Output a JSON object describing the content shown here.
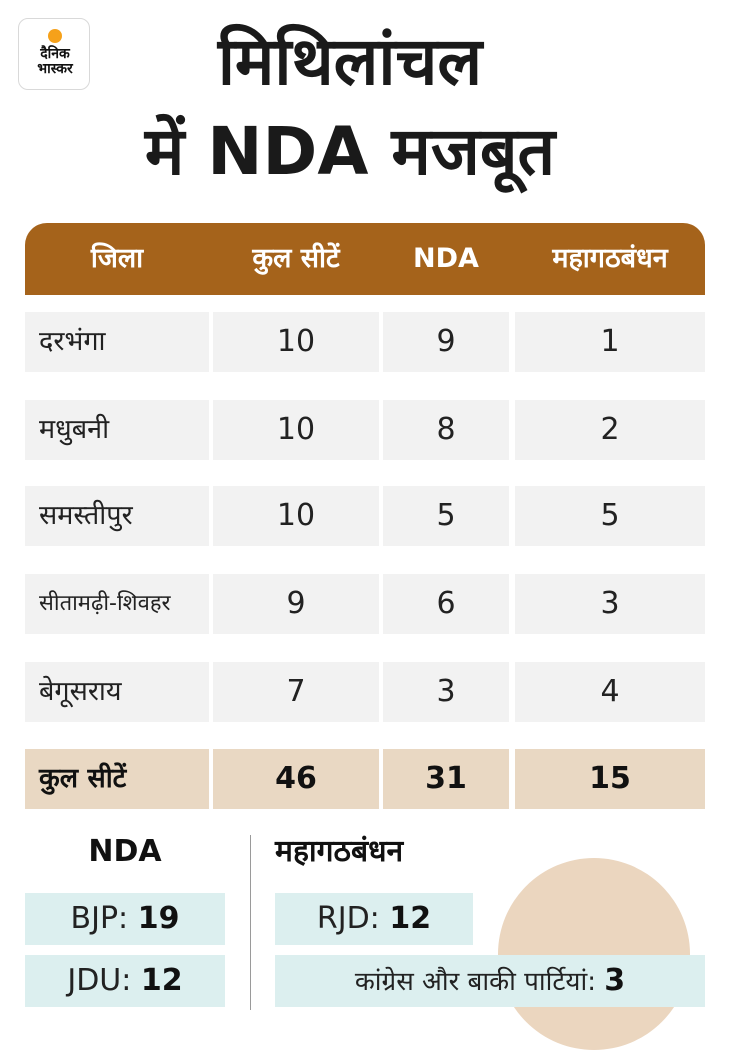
{
  "logo": {
    "line1": "दैनिक",
    "line2": "भास्कर"
  },
  "title": {
    "line1": "मिथिलांचल",
    "line2": "में NDA मजबूत"
  },
  "table": {
    "headers": [
      "जिला",
      "कुल सीटें",
      "NDA",
      "महागठबंधन"
    ],
    "rows": [
      {
        "district": "दरभंगा",
        "total": "10",
        "nda": "9",
        "mgb": "1"
      },
      {
        "district": "मधुबनी",
        "total": "10",
        "nda": "8",
        "mgb": "2"
      },
      {
        "district": "समस्तीपुर",
        "total": "10",
        "nda": "5",
        "mgb": "5"
      },
      {
        "district": "सीतामढ़ी-शिवहर",
        "total": "9",
        "nda": "6",
        "mgb": "3"
      },
      {
        "district": "बेगूसराय",
        "total": "7",
        "nda": "3",
        "mgb": "4"
      }
    ],
    "total_row": {
      "label": "कुल सीटें",
      "total": "46",
      "nda": "31",
      "mgb": "15"
    }
  },
  "summary": {
    "nda": {
      "heading": "NDA",
      "parties": [
        {
          "name": "BJP:",
          "seats": "19"
        },
        {
          "name": "JDU:",
          "seats": "12"
        }
      ]
    },
    "mgb": {
      "heading": "महागठबंधन",
      "parties": [
        {
          "name": "RJD:",
          "seats": "12"
        },
        {
          "name": "कांग्रेस और बाकी पार्टियां:",
          "seats": "3"
        }
      ]
    }
  },
  "colors": {
    "header": "#a5631b",
    "row": "#f2f2f2",
    "total_row": "#e9d8c3",
    "pill": "#dcefef"
  }
}
